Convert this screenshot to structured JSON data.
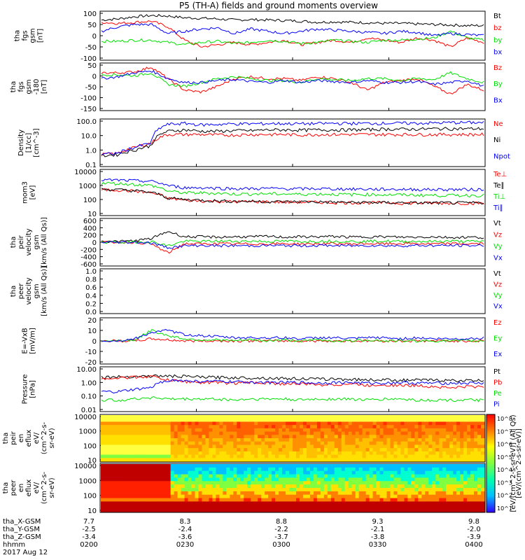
{
  "title": "P5 (TH-A) fields and ground moments overview",
  "colors": {
    "black": "#000000",
    "red": "#ff0000",
    "green": "#00e000",
    "blue": "#0000ff"
  },
  "chart_data": [
    {
      "type": "line",
      "ylabel": [
        "tha",
        "fgs",
        "gsm",
        "[nT]"
      ],
      "ylim": [
        -100,
        100
      ],
      "yticks": [
        "100",
        "50",
        "0",
        "-50",
        "-100"
      ],
      "series": [
        {
          "name": "Bt",
          "color": "black",
          "values": [
            70,
            75,
            85,
            90,
            88,
            80,
            78,
            75,
            70,
            72,
            70,
            68,
            65,
            60,
            62,
            60,
            58,
            55,
            55,
            52,
            50,
            48,
            45,
            45
          ]
        },
        {
          "name": "bz",
          "color": "red",
          "values": [
            60,
            55,
            60,
            65,
            40,
            -20,
            -50,
            -40,
            -30,
            -40,
            -30,
            -20,
            -40,
            -30,
            -20,
            -30,
            -10,
            -20,
            -30,
            -10,
            -20,
            -50,
            -10,
            -30
          ]
        },
        {
          "name": "by",
          "color": "green",
          "values": [
            -25,
            -25,
            -20,
            -20,
            -30,
            -40,
            -30,
            -25,
            -35,
            -30,
            -20,
            -25,
            -35,
            -30,
            -20,
            -25,
            -30,
            -20,
            -20,
            -15,
            -10,
            20,
            -10,
            -20
          ]
        },
        {
          "name": "bx",
          "color": "blue",
          "values": [
            20,
            40,
            50,
            50,
            10,
            20,
            30,
            35,
            10,
            30,
            20,
            10,
            20,
            30,
            25,
            20,
            15,
            10,
            20,
            15,
            0,
            10,
            5,
            0
          ]
        }
      ]
    },
    {
      "type": "line",
      "ylabel": [
        "tha",
        "fgs",
        "gsm",
        "-180",
        "[nT]"
      ],
      "ylim": [
        -175,
        50
      ],
      "yticks": [
        "50",
        "0",
        "-50",
        "-100",
        "-150"
      ],
      "series": [
        {
          "name": "Bz",
          "color": "red",
          "values": [
            10,
            10,
            15,
            40,
            -20,
            -80,
            -90,
            -60,
            -20,
            -10,
            -20,
            -20,
            -30,
            -10,
            -20,
            -40,
            -80,
            -40,
            -30,
            -20,
            -60,
            -100,
            -50,
            -80
          ]
        },
        {
          "name": "By",
          "color": "green",
          "values": [
            0,
            0,
            -5,
            10,
            -50,
            -60,
            -40,
            -20,
            -10,
            -20,
            -30,
            -30,
            -40,
            -20,
            -25,
            -30,
            -20,
            -20,
            -30,
            -20,
            -25,
            10,
            -20,
            -40
          ]
        },
        {
          "name": "Bx",
          "color": "blue",
          "values": [
            -20,
            -10,
            10,
            20,
            -20,
            -40,
            -40,
            -30,
            -25,
            -35,
            -40,
            -30,
            -40,
            -30,
            -35,
            -40,
            -30,
            -40,
            -40,
            -35,
            -50,
            -40,
            -30,
            -60
          ]
        }
      ]
    },
    {
      "type": "line",
      "scale": "log",
      "ylabel": [
        "Density",
        "[1/cc]",
        "[cm^-3]"
      ],
      "ylim": [
        0.1,
        100
      ],
      "yticks": [
        "100.0",
        "10.0",
        "1.0",
        "0.1"
      ],
      "series": [
        {
          "name": "Ne",
          "color": "red",
          "values": [
            0.5,
            0.6,
            1.5,
            3,
            12,
            12,
            12,
            11,
            11,
            12,
            12,
            12,
            11,
            12,
            12,
            12,
            12,
            12,
            12,
            12,
            12,
            12,
            12,
            12
          ]
        },
        {
          "name": "Ni",
          "color": "black",
          "values": [
            0.4,
            0.5,
            1.0,
            2,
            20,
            25,
            20,
            20,
            22,
            22,
            25,
            25,
            24,
            25,
            25,
            25,
            26,
            28,
            28,
            28,
            30,
            30,
            30,
            30
          ]
        },
        {
          "name": "Npot",
          "color": "blue",
          "values": [
            0.5,
            0.6,
            1.5,
            3,
            60,
            70,
            55,
            60,
            65,
            65,
            68,
            68,
            66,
            68,
            70,
            70,
            70,
            72,
            72,
            72,
            75,
            80,
            80,
            80
          ]
        }
      ]
    },
    {
      "type": "line",
      "scale": "log",
      "ylabel": [
        "mom3",
        "[eV]"
      ],
      "ylim": [
        10,
        10000
      ],
      "yticks": [
        "10000",
        "1000",
        "100",
        "10"
      ],
      "series": [
        {
          "name": "Te⊥",
          "color": "red",
          "values": [
            500,
            480,
            400,
            300,
            120,
            90,
            80,
            75,
            70,
            70,
            70,
            65,
            65,
            65,
            60,
            60,
            60,
            60,
            55,
            55,
            55,
            55,
            55,
            55
          ]
        },
        {
          "name": "Te∥",
          "color": "black",
          "values": [
            550,
            500,
            420,
            320,
            130,
            100,
            90,
            80,
            75,
            75,
            72,
            70,
            70,
            68,
            65,
            62,
            62,
            60,
            60,
            58,
            58,
            58,
            58,
            58
          ]
        },
        {
          "name": "Ti⊥",
          "color": "green",
          "values": [
            1500,
            1400,
            1200,
            1000,
            400,
            300,
            300,
            280,
            250,
            250,
            260,
            250,
            240,
            250,
            240,
            230,
            230,
            220,
            220,
            210,
            200,
            200,
            200,
            200
          ]
        },
        {
          "name": "Ti∥",
          "color": "blue",
          "values": [
            2500,
            2400,
            2200,
            2000,
            1000,
            700,
            700,
            650,
            600,
            600,
            620,
            600,
            580,
            600,
            580,
            560,
            550,
            540,
            540,
            530,
            520,
            520,
            520,
            520
          ]
        }
      ]
    },
    {
      "type": "line",
      "ylabel": [
        "tha",
        "peir",
        "velocity",
        "gsm",
        "[km/s (All Qs)]"
      ],
      "ylim": [
        -600,
        600
      ],
      "yticks": [
        "600",
        "400",
        "200",
        "0",
        "-200",
        "-400",
        "-600"
      ],
      "series": [
        {
          "name": "Vt",
          "color": "black",
          "values": [
            20,
            20,
            40,
            100,
            300,
            150,
            150,
            140,
            150,
            150,
            160,
            140,
            150,
            150,
            160,
            140,
            150,
            150,
            140,
            140,
            150,
            130,
            140,
            130
          ]
        },
        {
          "name": "Vz",
          "color": "red",
          "values": [
            0,
            0,
            0,
            -50,
            -300,
            -40,
            -50,
            -40,
            -50,
            -45,
            -50,
            -40,
            -50,
            -45,
            -40,
            -50,
            -40,
            -45,
            -40,
            -40,
            -50,
            -40,
            -45,
            -40
          ]
        },
        {
          "name": "Vy",
          "color": "green",
          "values": [
            0,
            0,
            0,
            20,
            -100,
            30,
            20,
            30,
            25,
            30,
            20,
            30,
            20,
            25,
            30,
            20,
            25,
            30,
            20,
            25,
            20,
            30,
            20,
            25
          ]
        },
        {
          "name": "Vx",
          "color": "blue",
          "values": [
            0,
            0,
            0,
            -20,
            -150,
            -100,
            -90,
            -100,
            -95,
            -100,
            -90,
            -95,
            -100,
            -90,
            -95,
            -100,
            -90,
            -95,
            -100,
            -90,
            -95,
            -90,
            -95,
            -90
          ]
        }
      ]
    },
    {
      "type": "line",
      "ylabel": [
        "tha",
        "peer",
        "velocity",
        "gsm",
        "[km/s (All Qs)]"
      ],
      "ylim": [
        0,
        1
      ],
      "yticks": [
        "1.0",
        "0.8",
        "0.6",
        "0.4",
        "0.2",
        "0.0"
      ],
      "series": [
        {
          "name": "Vt",
          "color": "black",
          "values": []
        },
        {
          "name": "Vz",
          "color": "red",
          "values": []
        },
        {
          "name": "Vy",
          "color": "green",
          "values": []
        },
        {
          "name": "Vx",
          "color": "blue",
          "values": []
        }
      ]
    },
    {
      "type": "line",
      "ylabel": [
        "E=-VxB",
        "[mV/m]"
      ],
      "ylim": [
        -20,
        20
      ],
      "yticks": [
        "20",
        "10",
        "0",
        "-10",
        "-20"
      ],
      "series": [
        {
          "name": "Ez",
          "color": "red",
          "values": [
            0,
            0,
            0,
            2,
            1,
            0,
            0,
            0,
            0,
            0,
            0,
            0,
            0,
            0,
            0,
            0,
            0,
            0,
            0,
            0,
            0,
            0,
            0,
            0
          ]
        },
        {
          "name": "Ey",
          "color": "green",
          "values": [
            0,
            0,
            1,
            10,
            5,
            2,
            1,
            1,
            0,
            1,
            0,
            1,
            0,
            1,
            0,
            0,
            1,
            0,
            0,
            0,
            0,
            0,
            0,
            0
          ]
        },
        {
          "name": "Ex",
          "color": "blue",
          "values": [
            0,
            0,
            2,
            8,
            10,
            6,
            5,
            4,
            3,
            3,
            3,
            3,
            2,
            3,
            3,
            2,
            3,
            3,
            2,
            3,
            2,
            2,
            2,
            3
          ]
        }
      ]
    },
    {
      "type": "line",
      "scale": "log",
      "ylabel": [
        "Pressure",
        "[nPa]"
      ],
      "ylim": [
        0.01,
        10
      ],
      "yticks": [
        "10.00",
        "1.00",
        "0.10",
        "0.01"
      ],
      "series": [
        {
          "name": "Pt",
          "color": "black",
          "values": [
            2.5,
            2.6,
            2.8,
            3.0,
            3.0,
            2.8,
            2.5,
            2.4,
            2.3,
            2.2,
            2.1,
            2.0,
            1.9,
            1.8,
            1.8,
            1.7,
            1.6,
            1.6,
            1.5,
            1.5,
            1.5,
            1.4,
            1.4,
            1.4
          ]
        },
        {
          "name": "Pb",
          "color": "red",
          "values": [
            2.0,
            2.2,
            2.5,
            2.8,
            1.5,
            1.2,
            1.0,
            1.0,
            0.9,
            1.0,
            0.9,
            0.8,
            0.8,
            0.7,
            0.7,
            0.8,
            0.6,
            0.7,
            0.6,
            0.6,
            0.5,
            0.4,
            0.5,
            0.5
          ]
        },
        {
          "name": "Pe",
          "color": "green",
          "values": [
            0.05,
            0.05,
            0.06,
            0.08,
            0.06,
            0.06,
            0.06,
            0.06,
            0.05,
            0.06,
            0.06,
            0.06,
            0.05,
            0.06,
            0.06,
            0.06,
            0.05,
            0.06,
            0.06,
            0.05,
            0.05,
            0.05,
            0.05,
            0.05
          ]
        },
        {
          "name": "Pi",
          "color": "blue",
          "values": [
            0.2,
            0.2,
            0.3,
            0.4,
            1.5,
            1.3,
            1.2,
            1.2,
            1.1,
            1.1,
            1.0,
            1.0,
            1.0,
            0.9,
            1.0,
            1.0,
            0.9,
            0.9,
            1.0,
            0.9,
            0.9,
            0.9,
            0.9,
            0.9
          ]
        }
      ]
    },
    {
      "type": "heatmap",
      "ylabel": [
        "tha",
        "peir",
        "en",
        "eflux",
        "eV/",
        "(cm^2-s-",
        "sr-eV)"
      ],
      "yticks": [
        "10000",
        "1000",
        "100",
        "10"
      ],
      "style": "ion"
    },
    {
      "type": "heatmap",
      "ylabel": [
        "tha",
        "peer",
        "en",
        "eflux",
        "eV/",
        "(cm^2-s-",
        "sr-eV)"
      ],
      "yticks": [
        "10000",
        "1000",
        "100",
        "10"
      ],
      "style": "electron"
    }
  ],
  "colorbar": {
    "ticks": [
      "10^8",
      "10^7",
      "10^6",
      "10^5",
      "10^4",
      "10^3",
      "10^2",
      "10^1"
    ],
    "label": "[eV/(cm^2-s-sr-eV)] (All Qs)",
    "label2": "[eV/(cm^2-s-sr-eV)]"
  },
  "xaxis": {
    "rows": [
      {
        "label": "tha_X-GSM",
        "values": [
          "7.7",
          "8.3",
          "8.8",
          "9.3",
          "9.8"
        ]
      },
      {
        "label": "tha_Y-GSM",
        "values": [
          "-2.5",
          "-2.4",
          "-2.2",
          "-2.1",
          "-2.0"
        ]
      },
      {
        "label": "tha_Z-GSM",
        "values": [
          "-3.4",
          "-3.6",
          "-3.7",
          "-3.8",
          "-3.9"
        ]
      },
      {
        "label": "hhmm",
        "values": [
          "0200",
          "0230",
          "0300",
          "0330",
          "0400"
        ]
      }
    ],
    "date": "2017 Aug 12"
  }
}
